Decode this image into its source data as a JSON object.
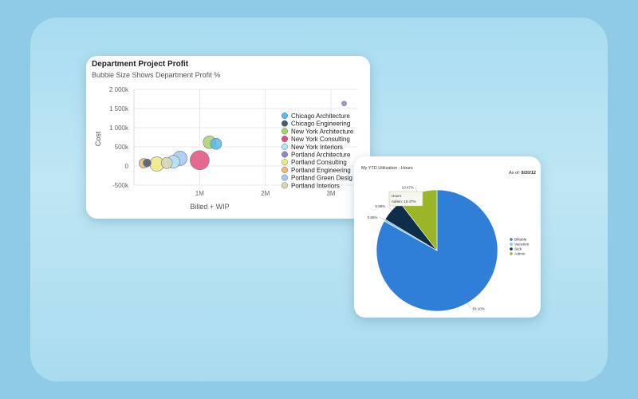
{
  "chart_data": [
    {
      "type": "scatter",
      "title": "Department Project Profit",
      "subtitle": "Bubble Size Shows Department Profit %",
      "xlabel": "Billed + WIP",
      "ylabel": "Cost",
      "xlim": [
        0,
        3400000
      ],
      "ylim": [
        -500000,
        2000000
      ],
      "grid": true,
      "legend_position": "right",
      "x_ticks": [
        {
          "value": 1000000,
          "label": "1M"
        },
        {
          "value": 2000000,
          "label": "2M"
        },
        {
          "value": 3000000,
          "label": "3M"
        }
      ],
      "y_ticks": [
        {
          "value": 2000000,
          "label": "2 000k"
        },
        {
          "value": 1500000,
          "label": "1 500k"
        },
        {
          "value": 1000000,
          "label": "1 000k"
        },
        {
          "value": 500000,
          "label": "500k"
        },
        {
          "value": 0,
          "label": "0"
        },
        {
          "value": -500000,
          "label": "-500k"
        }
      ],
      "series": [
        {
          "name": "Chicago Architecture",
          "color": "#57b9e8",
          "x": 1250000,
          "y": 580000,
          "size": 7
        },
        {
          "name": "Chicago Engineering",
          "color": "#4a5a6e",
          "x": 200000,
          "y": 80000,
          "size": 5
        },
        {
          "name": "New York Architecture",
          "color": "#a8d16a",
          "x": 1150000,
          "y": 620000,
          "size": 8
        },
        {
          "name": "New York Consulting",
          "color": "#e0507a",
          "x": 1000000,
          "y": 150000,
          "size": 12
        },
        {
          "name": "New York Interiors",
          "color": "#b6e0f4",
          "x": 600000,
          "y": 110000,
          "size": 8
        },
        {
          "name": "Portland Architecture",
          "color": "#8a88c4",
          "x": 3200000,
          "y": 1630000,
          "size": 3
        },
        {
          "name": "Portland Consulting",
          "color": "#efe97e",
          "x": 350000,
          "y": 50000,
          "size": 9
        },
        {
          "name": "Portland Engineering",
          "color": "#f0b873",
          "x": 150000,
          "y": 70000,
          "size": 6
        },
        {
          "name": "Portland Green Desig",
          "color": "#a7c7f0",
          "x": 700000,
          "y": 200000,
          "size": 9
        },
        {
          "name": "Portland Interiors",
          "color": "#d5d7b2",
          "x": 500000,
          "y": 80000,
          "size": 7
        }
      ]
    },
    {
      "type": "pie",
      "title": "My YTD Utilization - Hours",
      "as_of_label": "As of:",
      "as_of_date": "8/20/12",
      "legend_position": "right",
      "slices": [
        {
          "name": "Billable",
          "value": 83.1,
          "label": "83.10%",
          "color": "#2f7ed8"
        },
        {
          "name": "Vacation",
          "value": 0.55,
          "label": "0.55%",
          "color": "#7cc3ea"
        },
        {
          "name": "Sick",
          "value": 5.88,
          "label": "5.88%",
          "color": "#0d2d4a"
        },
        {
          "name": "Admin",
          "value": 10.47,
          "label": "10.47%",
          "color": "#9ab527"
        }
      ],
      "tooltip": {
        "title": "Hours",
        "text": "Admin: 10.47%"
      }
    }
  ]
}
